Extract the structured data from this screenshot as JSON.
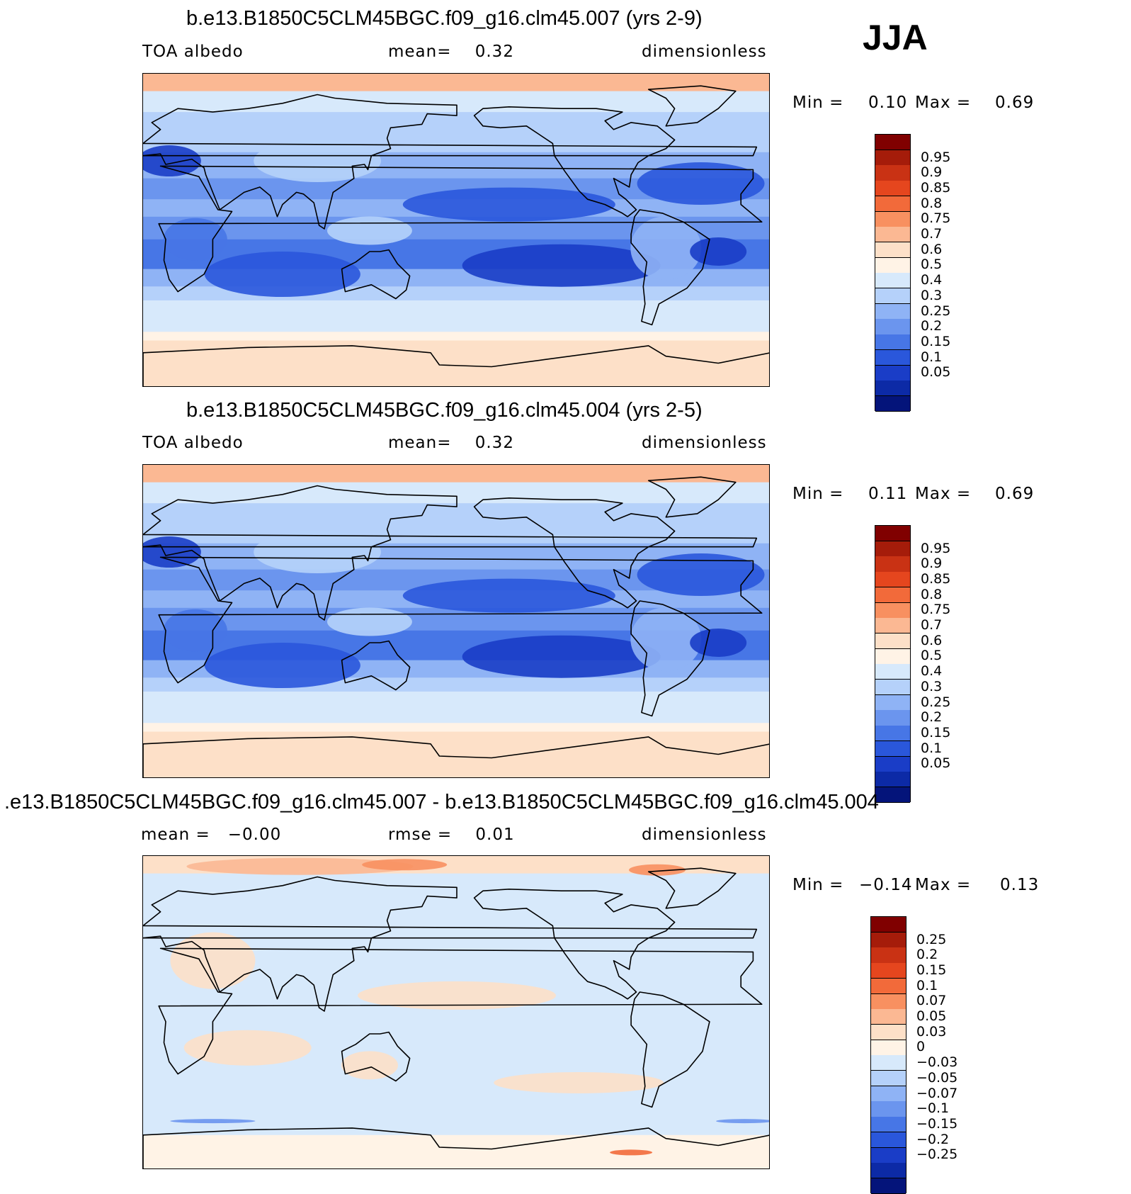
{
  "season": "JJA",
  "panels": [
    {
      "id": "p1",
      "title": "b.e13.B1850C5CLM45BGC.f09_g16.clm45.007 (yrs 2-9)",
      "left_label": "TOA albedo",
      "center_label": "mean=    0.32",
      "right_label": "dimensionless",
      "min_label": "Min =",
      "min_value": "0.10",
      "max_label": "Max =",
      "max_value": "0.69"
    },
    {
      "id": "p2",
      "title": "b.e13.B1850C5CLM45BGC.f09_g16.clm45.004 (yrs 2-5)",
      "left_label": "TOA albedo",
      "center_label": "mean=    0.32",
      "right_label": "dimensionless",
      "min_label": "Min =",
      "min_value": "0.11",
      "max_label": "Max =",
      "max_value": "0.69"
    },
    {
      "id": "p3",
      "title": ".e13.B1850C5CLM45BGC.f09_g16.clm45.007 - b.e13.B1850C5CLM45BGC.f09_g16.clm45.004",
      "left_label": "mean =   −0.00",
      "center_label": "rmse =    0.01",
      "right_label": "dimensionless",
      "min_label": "Min =",
      "min_value": "−0.14",
      "max_label": "Max =",
      "max_value": "0.13"
    }
  ],
  "chart_data": [
    {
      "type": "heatmap",
      "title": "b.e13.B1850C5CLM45BGC.f09_g16.clm45.007 (yrs 2-9)",
      "variable": "TOA albedo",
      "units": "dimensionless",
      "mean": 0.32,
      "min": 0.1,
      "max": 0.69,
      "levels": [
        "0.95",
        "0.9",
        "0.85",
        "0.8",
        "0.75",
        "0.7",
        "0.6",
        "0.5",
        "0.4",
        "0.3",
        "0.25",
        "0.2",
        "0.15",
        "0.1",
        "0.05"
      ],
      "colors": [
        "#800000",
        "#a51c0a",
        "#c93214",
        "#e5461e",
        "#f26a3a",
        "#f89060",
        "#fbb893",
        "#fde0c8",
        "#fff3e6",
        "#d7e9fb",
        "#b5d1fa",
        "#8fb3f5",
        "#6b95ee",
        "#4776e6",
        "#2a57db",
        "#1a3dc7",
        "#0c2aa6",
        "#04147a"
      ]
    },
    {
      "type": "heatmap",
      "title": "b.e13.B1850C5CLM45BGC.f09_g16.clm45.004 (yrs 2-5)",
      "variable": "TOA albedo",
      "units": "dimensionless",
      "mean": 0.32,
      "min": 0.11,
      "max": 0.69,
      "levels": [
        "0.95",
        "0.9",
        "0.85",
        "0.8",
        "0.75",
        "0.7",
        "0.6",
        "0.5",
        "0.4",
        "0.3",
        "0.25",
        "0.2",
        "0.15",
        "0.1",
        "0.05"
      ],
      "colors": [
        "#800000",
        "#a51c0a",
        "#c93214",
        "#e5461e",
        "#f26a3a",
        "#f89060",
        "#fbb893",
        "#fde0c8",
        "#fff3e6",
        "#d7e9fb",
        "#b5d1fa",
        "#8fb3f5",
        "#6b95ee",
        "#4776e6",
        "#2a57db",
        "#1a3dc7",
        "#0c2aa6",
        "#04147a"
      ]
    },
    {
      "type": "heatmap",
      "title": ".e13.B1850C5CLM45BGC.f09_g16.clm45.007 - b.e13.B1850C5CLM45BGC.f09_g16.clm45.004",
      "units": "dimensionless",
      "mean": -0.0,
      "rmse": 0.01,
      "min": -0.14,
      "max": 0.13,
      "levels": [
        "0.25",
        "0.2",
        "0.15",
        "0.1",
        "0.07",
        "0.05",
        "0.03",
        "0",
        "−0.03",
        "−0.05",
        "−0.07",
        "−0.1",
        "−0.15",
        "−0.2",
        "−0.25"
      ],
      "colors": [
        "#800000",
        "#a51c0a",
        "#c93214",
        "#e5461e",
        "#f26a3a",
        "#f89060",
        "#fbb893",
        "#fde0c8",
        "#fff3e6",
        "#d7e9fb",
        "#b5d1fa",
        "#8fb3f5",
        "#6b95ee",
        "#4776e6",
        "#2a57db",
        "#1a3dc7",
        "#0c2aa6",
        "#04147a"
      ]
    }
  ]
}
